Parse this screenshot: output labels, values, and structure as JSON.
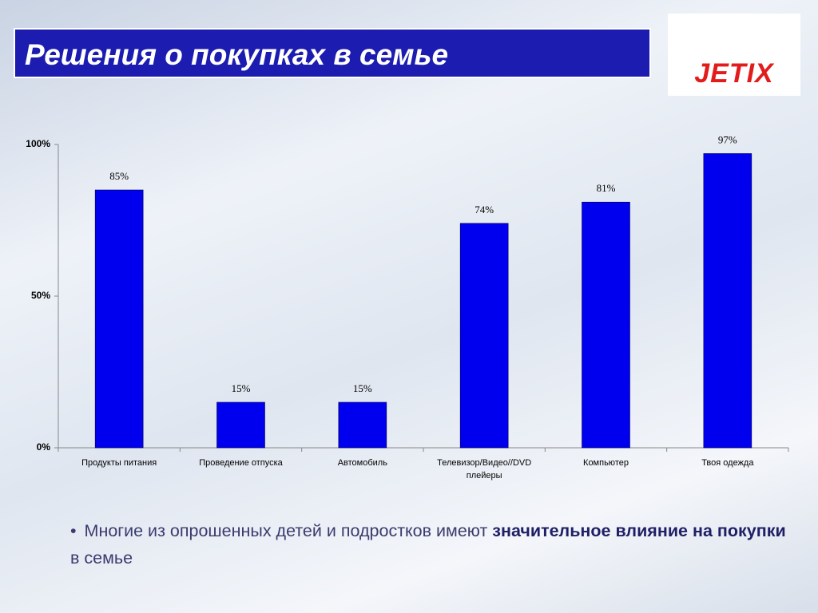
{
  "header": {
    "title": "Решения о покупках в семье",
    "logo": "JETIX"
  },
  "chart_data": {
    "type": "bar",
    "categories": [
      "Продукты питания",
      "Проведение отпуска",
      "Автомобиль",
      "Телевизор/Видео//DVD плейеры",
      "Компьютер",
      "Твоя одежда"
    ],
    "values": [
      85,
      15,
      15,
      74,
      81,
      97
    ],
    "value_labels": [
      "85%",
      "15%",
      "15%",
      "74%",
      "81%",
      "97%"
    ],
    "color": "#0000ee",
    "ylim": [
      0,
      100
    ],
    "yticks": [
      {
        "value": 0,
        "label": "0%"
      },
      {
        "value": 50,
        "label": "50%"
      },
      {
        "value": 100,
        "label": "100%"
      }
    ]
  },
  "bullet": {
    "before": "Многие из опрошенных детей и подростков имеют",
    "bold": "значительное влияние на покупки",
    "after": "в семье"
  }
}
